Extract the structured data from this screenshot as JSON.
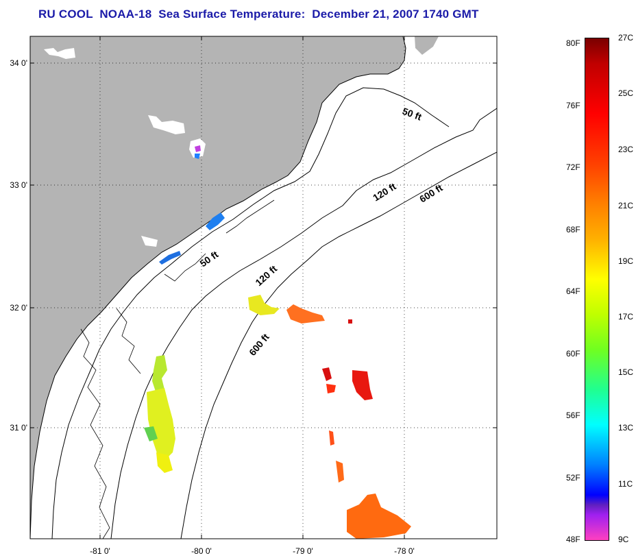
{
  "title": "RU COOL  NOAA-18  Sea Surface Temperature:  December 21, 2007 1740 GMT",
  "map": {
    "lon_ticks": [
      "-81 0'",
      "-80 0'",
      "-79 0'",
      "-78 0'"
    ],
    "lat_ticks": [
      "34 0'",
      "33 0'",
      "32 0'",
      "31 0'"
    ],
    "contours": [
      "50 ft",
      "50 ft",
      "120 ft",
      "120 ft",
      "600 ft",
      "600 ft"
    ],
    "land_color": "#b4b4b4",
    "coastline_color": "#000000"
  },
  "colorbar": {
    "fahrenheit": [
      "80F",
      "76F",
      "72F",
      "68F",
      "64F",
      "60F",
      "56F",
      "52F",
      "48F"
    ],
    "celsius": [
      "27C",
      "25C",
      "23C",
      "21C",
      "19C",
      "17C",
      "15C",
      "13C",
      "11C",
      "9C"
    ]
  }
}
